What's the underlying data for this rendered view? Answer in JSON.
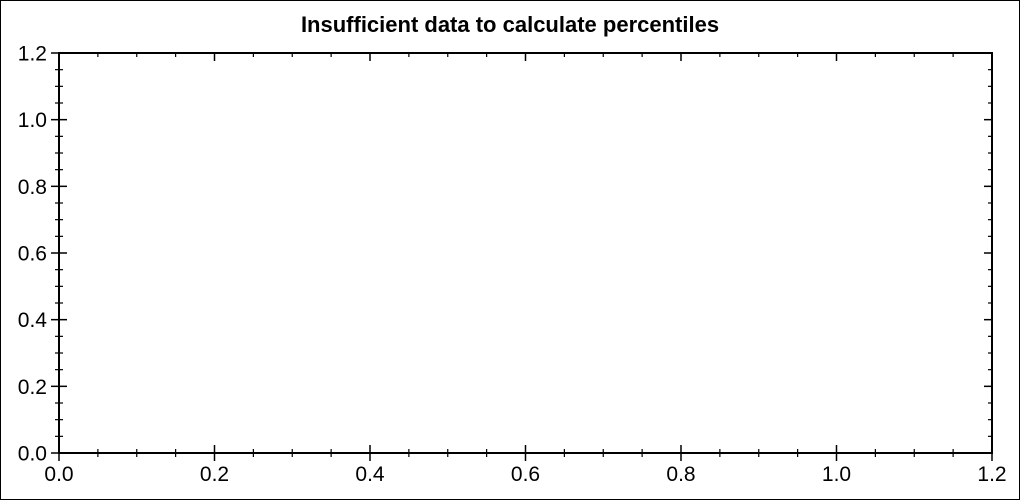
{
  "window": {
    "background_color": "#ffffff",
    "border_color": "#000000"
  },
  "chart_data": {
    "type": "scatter",
    "title": "Insufficient data to calculate percentiles",
    "series": [],
    "xlabel": "",
    "ylabel": "",
    "xlim": [
      0,
      1.2
    ],
    "ylim": [
      0,
      1.2
    ],
    "x_major_ticks": [
      0,
      0.2,
      0.4,
      0.6,
      0.8,
      1.0,
      1.2
    ],
    "x_major_labels": [
      "0.0",
      "0.2",
      "0.4",
      "0.6",
      "0.8",
      "1.0",
      "1.2"
    ],
    "y_major_ticks": [
      0,
      0.2,
      0.4,
      0.6,
      0.8,
      1.0,
      1.2
    ],
    "y_major_labels": [
      "0.0",
      "0.2",
      "0.4",
      "0.6",
      "0.8",
      "1.0",
      "1.2"
    ],
    "minor_tick_step": 0.05,
    "grid": false,
    "legend": false,
    "axis_color": "#000000",
    "text_color": "#000000"
  }
}
